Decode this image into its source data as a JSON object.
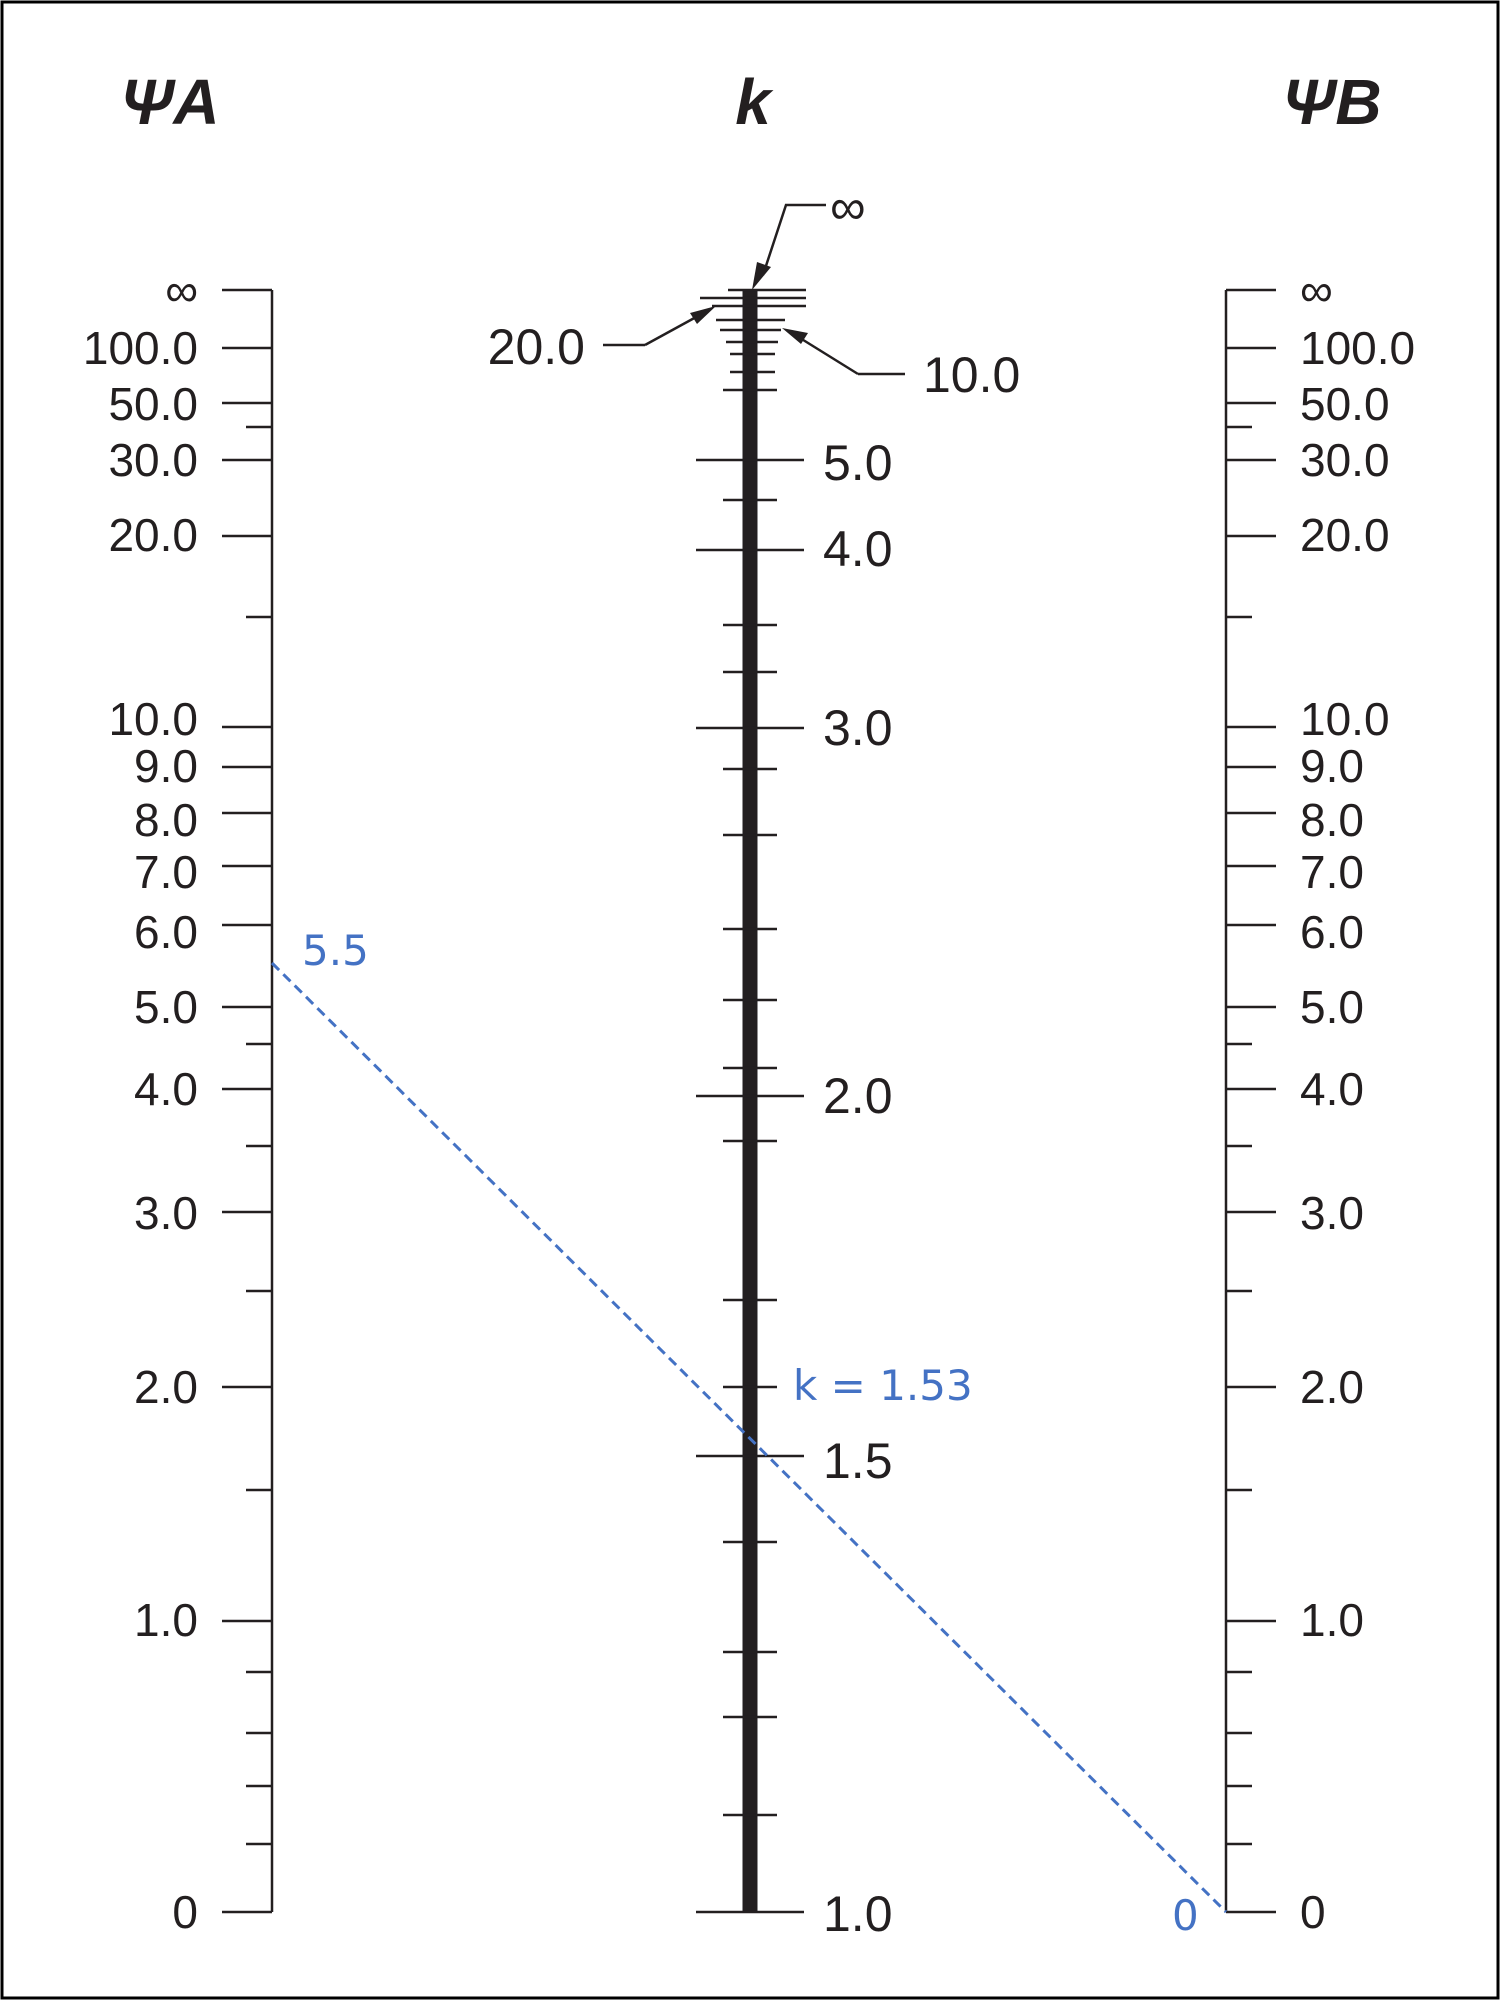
{
  "headers": {
    "left": "ΨA",
    "middle": "k",
    "right": "ΨB"
  },
  "psi_a_scale": {
    "labels": [
      "∞",
      "100.0",
      "50.0",
      "30.0",
      "20.0",
      "10.0",
      "9.0",
      "8.0",
      "7.0",
      "6.0",
      "5.0",
      "4.0",
      "3.0",
      "2.0",
      "1.0",
      "0"
    ]
  },
  "psi_b_scale": {
    "labels": [
      "∞",
      "100.0",
      "50.0",
      "30.0",
      "20.0",
      "10.0",
      "9.0",
      "8.0",
      "7.0",
      "6.0",
      "5.0",
      "4.0",
      "3.0",
      "2.0",
      "1.0",
      "0"
    ]
  },
  "k_scale": {
    "top_label": "∞",
    "callout_left": "20.0",
    "callout_right": "10.0",
    "labels": [
      "5.0",
      "4.0",
      "3.0",
      "2.0",
      "1.5",
      "1.0"
    ]
  },
  "annotation": {
    "psi_a_value": "5.5",
    "psi_b_value": "0",
    "k_result": "k = 1.53",
    "line_color": "#4472c4"
  },
  "colors": {
    "ink": "#231f20",
    "frame": "#000000",
    "annotation": "#4472c4"
  }
}
